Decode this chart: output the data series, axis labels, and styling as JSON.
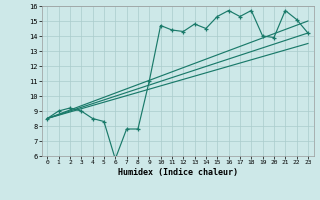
{
  "xlabel": "Humidex (Indice chaleur)",
  "bg_color": "#cde8e8",
  "grid_color": "#aacccc",
  "line_color": "#1a7a6a",
  "xlim": [
    -0.5,
    23.5
  ],
  "ylim": [
    6,
    16
  ],
  "xticks": [
    0,
    1,
    2,
    3,
    4,
    5,
    6,
    7,
    8,
    9,
    10,
    11,
    12,
    13,
    14,
    15,
    16,
    17,
    18,
    19,
    20,
    21,
    22,
    23
  ],
  "yticks": [
    6,
    7,
    8,
    9,
    10,
    11,
    12,
    13,
    14,
    15,
    16
  ],
  "line1_x": [
    0,
    1,
    2,
    3,
    4,
    5,
    6,
    7,
    8,
    9,
    10,
    11,
    12,
    13,
    14,
    15,
    16,
    17,
    18,
    19,
    20,
    21,
    22,
    23
  ],
  "line1_y": [
    8.5,
    9.0,
    9.2,
    9.0,
    8.5,
    8.3,
    5.8,
    7.8,
    7.8,
    11.0,
    14.7,
    14.4,
    14.3,
    14.8,
    14.5,
    15.3,
    15.7,
    15.3,
    15.7,
    14.0,
    13.9,
    15.7,
    15.1,
    14.2
  ],
  "line2_x": [
    0,
    23
  ],
  "line2_y": [
    8.5,
    14.2
  ],
  "line3_x": [
    0,
    23
  ],
  "line3_y": [
    8.5,
    13.5
  ],
  "line4_x": [
    0,
    23
  ],
  "line4_y": [
    8.5,
    15.0
  ]
}
